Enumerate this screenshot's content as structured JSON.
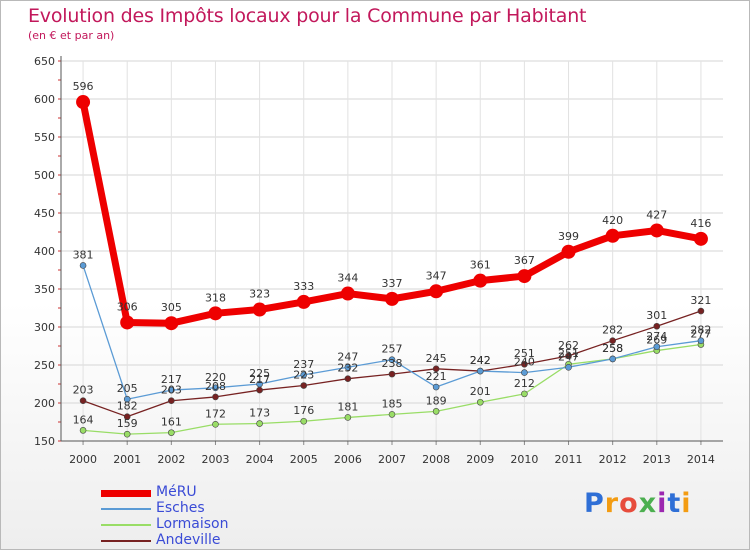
{
  "title": "Evolution des Impôts locaux pour la Commune par Habitant",
  "subtitle": "(en € et par an)",
  "logo": {
    "text": "Proxiti",
    "colors": [
      "#2f6fd6",
      "#f39c12",
      "#e74c3c",
      "#4caf50",
      "#9c27b0",
      "#2f6fd6",
      "#f39c12"
    ]
  },
  "chart_data": {
    "type": "line",
    "x": [
      2000,
      2001,
      2002,
      2003,
      2004,
      2005,
      2006,
      2007,
      2008,
      2009,
      2010,
      2011,
      2012,
      2013,
      2014
    ],
    "ylim": [
      150,
      650
    ],
    "yticks": [
      150,
      200,
      250,
      300,
      350,
      400,
      450,
      500,
      550,
      600,
      650
    ],
    "grid": true,
    "legend": "bottom-left",
    "series": [
      {
        "name": "MéRU",
        "color": "#ee0000",
        "values": [
          596,
          306,
          305,
          318,
          323,
          333,
          344,
          337,
          347,
          361,
          367,
          399,
          420,
          427,
          416
        ]
      },
      {
        "name": "Esches",
        "color": "#5b9bd5",
        "values": [
          381,
          205,
          217,
          220,
          225,
          237,
          247,
          257,
          221,
          242,
          240,
          247,
          258,
          274,
          282
        ]
      },
      {
        "name": "Lormaison",
        "color": "#99dd66",
        "values": [
          164,
          159,
          161,
          172,
          173,
          176,
          181,
          185,
          189,
          201,
          212,
          251,
          258,
          269,
          277
        ]
      },
      {
        "name": "Andeville",
        "color": "#772222",
        "values": [
          203,
          182,
          203,
          208,
          217,
          223,
          232,
          238,
          245,
          242,
          251,
          262,
          282,
          301,
          321
        ]
      }
    ]
  }
}
